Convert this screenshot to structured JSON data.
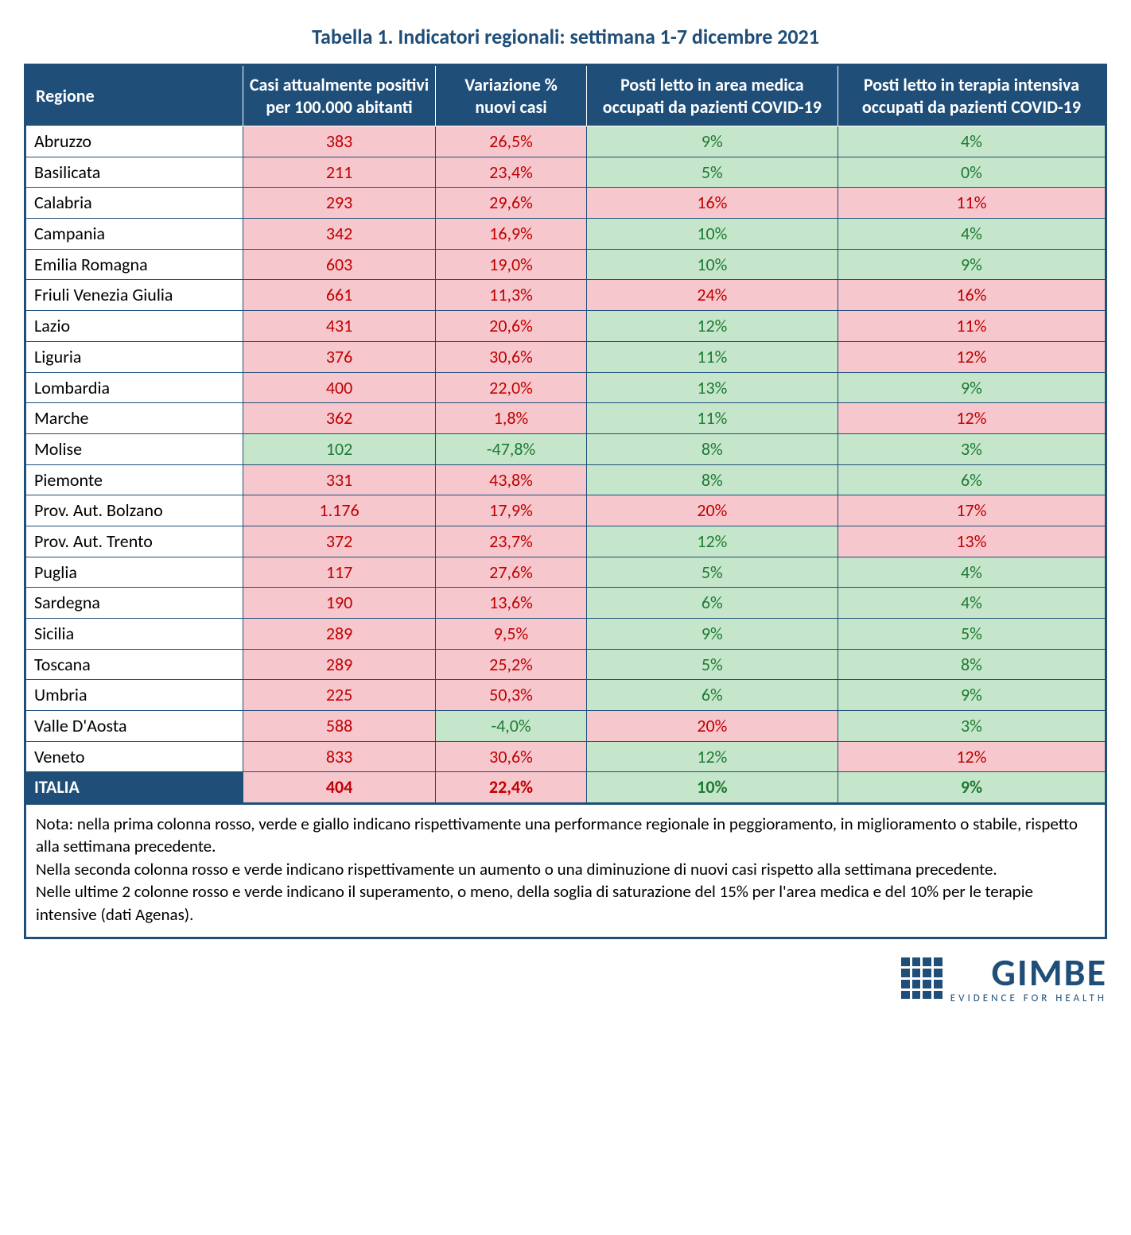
{
  "title": "Tabella 1. Indicatori regionali: settimana 1-7 dicembre 2021",
  "title_color": "#1f4e79",
  "header_bg": "#1f4e79",
  "columns": [
    "Regione",
    "Casi attualmente positivi per 100.000 abitanti",
    "Variazione % nuovi casi",
    "Posti letto in area medica occupati da pazienti COVID-19",
    "Posti letto in terapia intensiva occupati da pazienti COVID-19"
  ],
  "col_widths": [
    "260px",
    "230px",
    "180px",
    "300px",
    "320px"
  ],
  "colors": {
    "red_bg": "#f7c7ce",
    "red_text": "#c00000",
    "green_bg": "#c5e6ca",
    "green_text": "#1e7a33",
    "header_bg": "#1f4e79",
    "border": "#1f4e79"
  },
  "rows": [
    {
      "region": "Abruzzo",
      "cells": [
        {
          "v": "383",
          "s": "r"
        },
        {
          "v": "26,5%",
          "s": "r"
        },
        {
          "v": "9%",
          "s": "g"
        },
        {
          "v": "4%",
          "s": "g"
        }
      ]
    },
    {
      "region": "Basilicata",
      "cells": [
        {
          "v": "211",
          "s": "r"
        },
        {
          "v": "23,4%",
          "s": "r"
        },
        {
          "v": "5%",
          "s": "g"
        },
        {
          "v": "0%",
          "s": "g"
        }
      ]
    },
    {
      "region": "Calabria",
      "cells": [
        {
          "v": "293",
          "s": "r"
        },
        {
          "v": "29,6%",
          "s": "r"
        },
        {
          "v": "16%",
          "s": "r"
        },
        {
          "v": "11%",
          "s": "r"
        }
      ]
    },
    {
      "region": "Campania",
      "cells": [
        {
          "v": "342",
          "s": "r"
        },
        {
          "v": "16,9%",
          "s": "r"
        },
        {
          "v": "10%",
          "s": "g"
        },
        {
          "v": "4%",
          "s": "g"
        }
      ]
    },
    {
      "region": "Emilia Romagna",
      "cells": [
        {
          "v": "603",
          "s": "r"
        },
        {
          "v": "19,0%",
          "s": "r"
        },
        {
          "v": "10%",
          "s": "g"
        },
        {
          "v": "9%",
          "s": "g"
        }
      ]
    },
    {
      "region": "Friuli Venezia Giulia",
      "cells": [
        {
          "v": "661",
          "s": "r"
        },
        {
          "v": "11,3%",
          "s": "r"
        },
        {
          "v": "24%",
          "s": "r"
        },
        {
          "v": "16%",
          "s": "r"
        }
      ]
    },
    {
      "region": "Lazio",
      "cells": [
        {
          "v": "431",
          "s": "r"
        },
        {
          "v": "20,6%",
          "s": "r"
        },
        {
          "v": "12%",
          "s": "g"
        },
        {
          "v": "11%",
          "s": "r"
        }
      ]
    },
    {
      "region": "Liguria",
      "cells": [
        {
          "v": "376",
          "s": "r"
        },
        {
          "v": "30,6%",
          "s": "r"
        },
        {
          "v": "11%",
          "s": "g"
        },
        {
          "v": "12%",
          "s": "r"
        }
      ]
    },
    {
      "region": "Lombardia",
      "cells": [
        {
          "v": "400",
          "s": "r"
        },
        {
          "v": "22,0%",
          "s": "r"
        },
        {
          "v": "13%",
          "s": "g"
        },
        {
          "v": "9%",
          "s": "g"
        }
      ]
    },
    {
      "region": "Marche",
      "cells": [
        {
          "v": "362",
          "s": "r"
        },
        {
          "v": "1,8%",
          "s": "r"
        },
        {
          "v": "11%",
          "s": "g"
        },
        {
          "v": "12%",
          "s": "r"
        }
      ]
    },
    {
      "region": "Molise",
      "cells": [
        {
          "v": "102",
          "s": "g"
        },
        {
          "v": "-47,8%",
          "s": "g"
        },
        {
          "v": "8%",
          "s": "g"
        },
        {
          "v": "3%",
          "s": "g"
        }
      ]
    },
    {
      "region": "Piemonte",
      "cells": [
        {
          "v": "331",
          "s": "r"
        },
        {
          "v": "43,8%",
          "s": "r"
        },
        {
          "v": "8%",
          "s": "g"
        },
        {
          "v": "6%",
          "s": "g"
        }
      ]
    },
    {
      "region": "Prov. Aut. Bolzano",
      "cells": [
        {
          "v": "1.176",
          "s": "r"
        },
        {
          "v": "17,9%",
          "s": "r"
        },
        {
          "v": "20%",
          "s": "r"
        },
        {
          "v": "17%",
          "s": "r"
        }
      ]
    },
    {
      "region": "Prov. Aut. Trento",
      "cells": [
        {
          "v": "372",
          "s": "r"
        },
        {
          "v": "23,7%",
          "s": "r"
        },
        {
          "v": "12%",
          "s": "g"
        },
        {
          "v": "13%",
          "s": "r"
        }
      ]
    },
    {
      "region": "Puglia",
      "cells": [
        {
          "v": "117",
          "s": "r"
        },
        {
          "v": "27,6%",
          "s": "r"
        },
        {
          "v": "5%",
          "s": "g"
        },
        {
          "v": "4%",
          "s": "g"
        }
      ]
    },
    {
      "region": "Sardegna",
      "cells": [
        {
          "v": "190",
          "s": "r"
        },
        {
          "v": "13,6%",
          "s": "r"
        },
        {
          "v": "6%",
          "s": "g"
        },
        {
          "v": "4%",
          "s": "g"
        }
      ]
    },
    {
      "region": "Sicilia",
      "cells": [
        {
          "v": "289",
          "s": "r"
        },
        {
          "v": "9,5%",
          "s": "r"
        },
        {
          "v": "9%",
          "s": "g"
        },
        {
          "v": "5%",
          "s": "g"
        }
      ]
    },
    {
      "region": "Toscana",
      "cells": [
        {
          "v": "289",
          "s": "r"
        },
        {
          "v": "25,2%",
          "s": "r"
        },
        {
          "v": "5%",
          "s": "g"
        },
        {
          "v": "8%",
          "s": "g"
        }
      ]
    },
    {
      "region": "Umbria",
      "cells": [
        {
          "v": "225",
          "s": "r"
        },
        {
          "v": "50,3%",
          "s": "r"
        },
        {
          "v": "6%",
          "s": "g"
        },
        {
          "v": "9%",
          "s": "g"
        }
      ]
    },
    {
      "region": "Valle D'Aosta",
      "cells": [
        {
          "v": "588",
          "s": "r"
        },
        {
          "v": "-4,0%",
          "s": "g"
        },
        {
          "v": "20%",
          "s": "r"
        },
        {
          "v": "3%",
          "s": "g"
        }
      ]
    },
    {
      "region": "Veneto",
      "cells": [
        {
          "v": "833",
          "s": "r"
        },
        {
          "v": "30,6%",
          "s": "r"
        },
        {
          "v": "12%",
          "s": "g"
        },
        {
          "v": "12%",
          "s": "r"
        }
      ]
    }
  ],
  "total": {
    "region": "ITALIA",
    "cells": [
      {
        "v": "404",
        "s": "r"
      },
      {
        "v": "22,4%",
        "s": "r"
      },
      {
        "v": "10%",
        "s": "g"
      },
      {
        "v": "9%",
        "s": "g"
      }
    ]
  },
  "note": "Nota: nella prima colonna rosso, verde e giallo indicano rispettivamente una performance regionale in peggioramento, in miglioramento o stabile, rispetto alla settimana precedente.\nNella seconda colonna rosso e verde indicano rispettivamente un aumento o una diminuzione di nuovi casi rispetto alla settimana precedente.\nNelle ultime 2 colonne rosso e verde indicano il superamento, o meno, della soglia di saturazione del 15% per l'area medica e del 10% per le terapie intensive (dati Agenas).",
  "logo": {
    "name": "GIMBE",
    "tagline": "EVIDENCE FOR HEALTH"
  }
}
